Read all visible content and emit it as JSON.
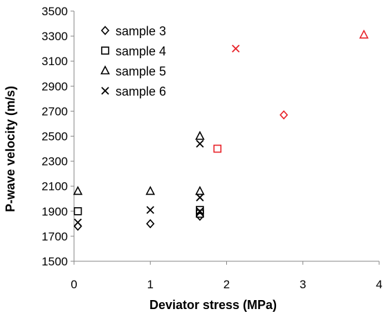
{
  "chart_data": {
    "type": "scatter",
    "xlabel": "Deviator stress (MPa)",
    "ylabel": "P-wave velocity (m/s)",
    "xlim": [
      0,
      4
    ],
    "ylim": [
      1500,
      3500
    ],
    "xticks": [
      "0",
      "1",
      "2",
      "3",
      "4"
    ],
    "yticks": [
      "1500",
      "1700",
      "1900",
      "2100",
      "2300",
      "2500",
      "2700",
      "2900",
      "3100",
      "3300",
      "3500"
    ],
    "grid": false,
    "legend_position": "top-left",
    "colors": {
      "default": "#000000",
      "highlight": "#e8232a"
    },
    "series": [
      {
        "name": "sample 3",
        "marker": "diamond",
        "points": [
          [
            0.05,
            1780
          ],
          [
            1.0,
            1800
          ],
          [
            1.65,
            1860
          ]
        ],
        "highlight_points": [
          [
            2.75,
            2670
          ]
        ]
      },
      {
        "name": "sample 4",
        "marker": "square",
        "points": [
          [
            0.05,
            1900
          ],
          [
            1.65,
            1880
          ],
          [
            1.65,
            1910
          ]
        ],
        "highlight_points": [
          [
            1.88,
            2400
          ]
        ]
      },
      {
        "name": "sample 5",
        "marker": "triangle",
        "points": [
          [
            0.05,
            2060
          ],
          [
            1.0,
            2060
          ],
          [
            1.65,
            2060
          ],
          [
            1.65,
            2500
          ]
        ],
        "highlight_points": [
          [
            3.8,
            3310
          ]
        ]
      },
      {
        "name": "sample 6",
        "marker": "x",
        "points": [
          [
            0.05,
            1810
          ],
          [
            1.0,
            1910
          ],
          [
            1.65,
            1900
          ],
          [
            1.65,
            2010
          ],
          [
            1.65,
            2440
          ]
        ],
        "highlight_points": [
          [
            2.12,
            3200
          ]
        ]
      }
    ]
  }
}
